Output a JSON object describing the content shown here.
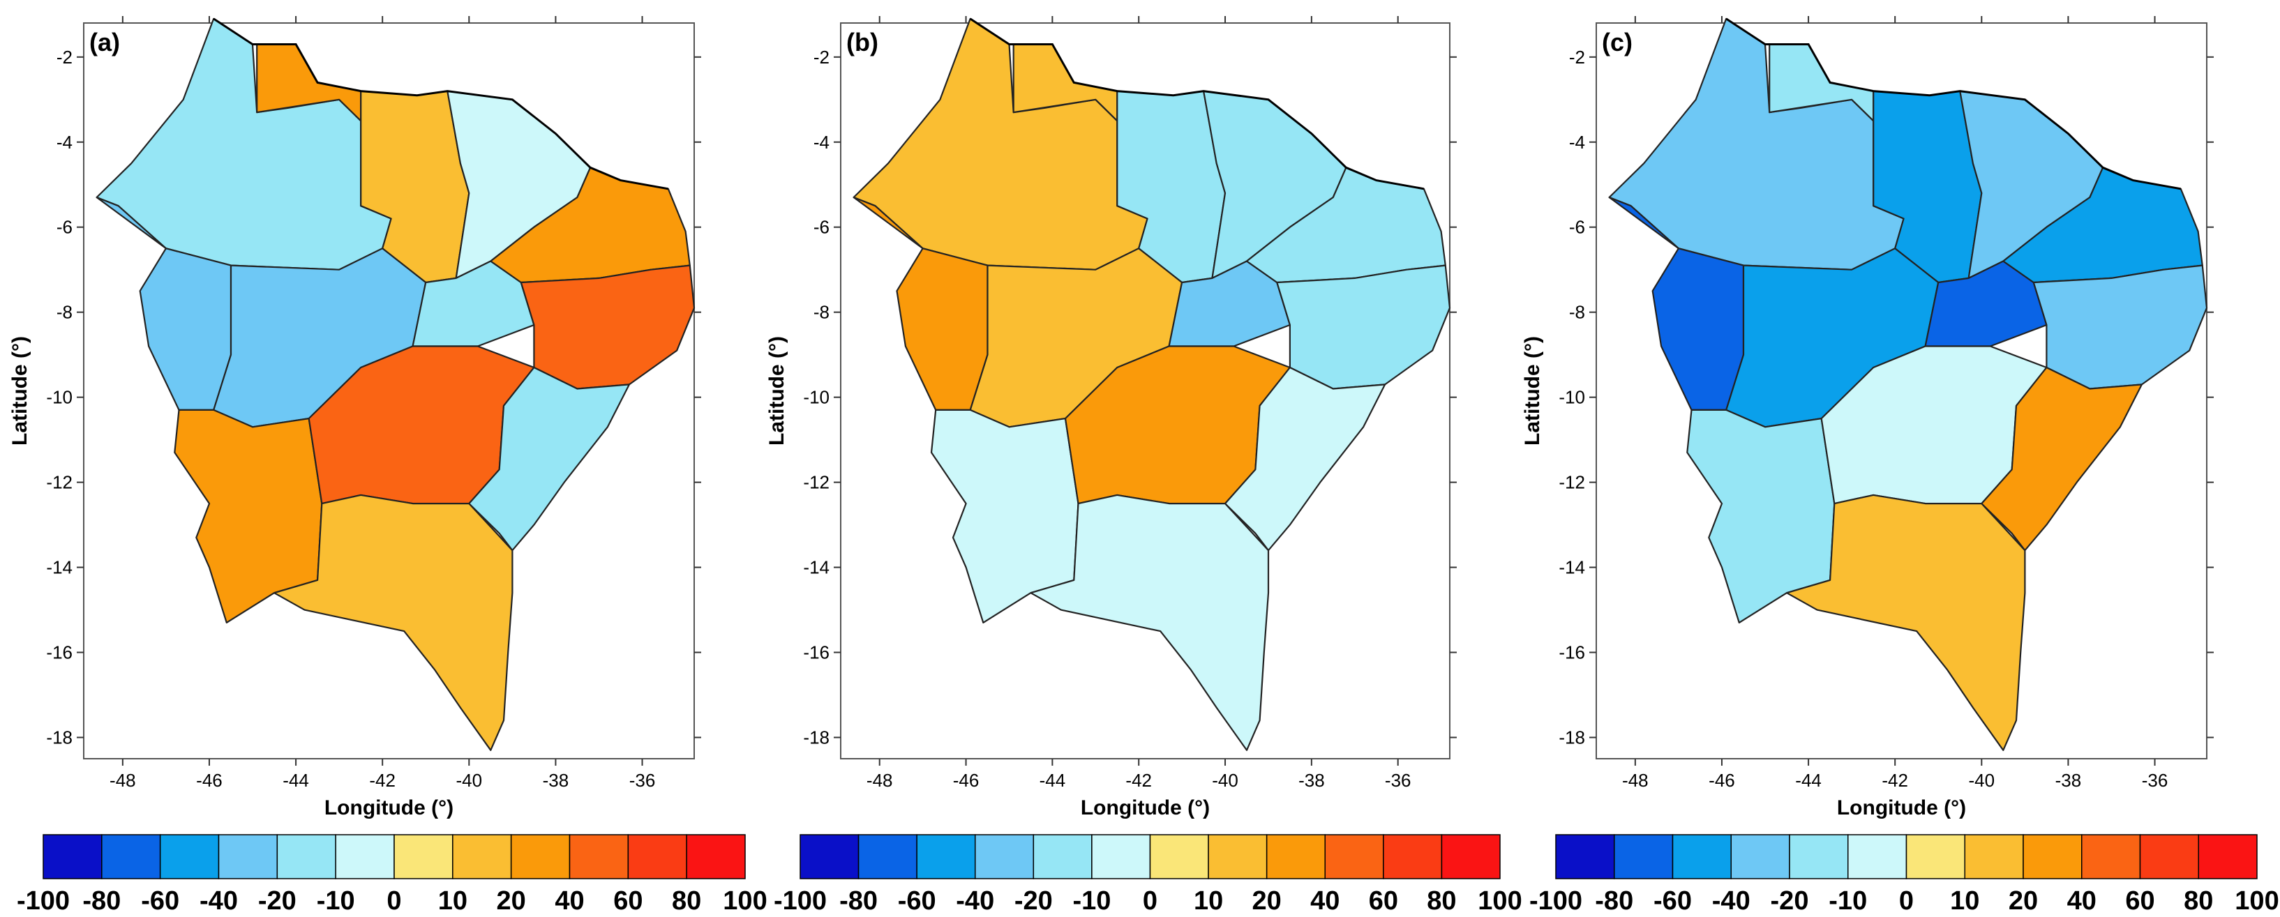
{
  "figure": {
    "x_label": "Longitude (°)",
    "y_label": "Latitude (°)",
    "x_ticks": [
      "-48",
      "-46",
      "-44",
      "-42",
      "-40",
      "-38",
      "-36"
    ],
    "y_ticks": [
      "-2",
      "-4",
      "-6",
      "-8",
      "-10",
      "-12",
      "-14",
      "-16",
      "-18"
    ],
    "x_tick_values": [
      -48,
      -46,
      -44,
      -42,
      -40,
      -38,
      -36
    ],
    "y_tick_values": [
      -2,
      -4,
      -6,
      -8,
      -10,
      -12,
      -14,
      -16,
      -18
    ],
    "x_range": [
      -48.9,
      -34.8
    ],
    "y_range": [
      -18.5,
      -1.2
    ],
    "colorbar_labels": [
      "-100",
      "-80",
      "-60",
      "-40",
      "-20",
      "-10",
      "0",
      "10",
      "20",
      "40",
      "60",
      "80",
      "100"
    ],
    "colorbar_colors": [
      "#0a10c8",
      "#0a64e6",
      "#0aa0eb",
      "#6ec8f5",
      "#96e6f5",
      "#cdf8fa",
      "#fae678",
      "#fabe32",
      "#fa9a0a",
      "#fa6414",
      "#fa3c14",
      "#fa1414"
    ]
  },
  "panels": [
    {
      "label": "(a)",
      "regions": [
        {
          "name": "north-west",
          "value": -20
        },
        {
          "name": "north-centre",
          "value": 20
        },
        {
          "name": "north-east-left",
          "value": 10
        },
        {
          "name": "north-east-right",
          "value": -10
        },
        {
          "name": "west",
          "value": -40
        },
        {
          "name": "central-west",
          "value": -40
        },
        {
          "name": "central-east",
          "value": -20
        },
        {
          "name": "east-north",
          "value": 20
        },
        {
          "name": "east-south",
          "value": 40
        },
        {
          "name": "south-west",
          "value": 20
        },
        {
          "name": "south-centre",
          "value": 40
        },
        {
          "name": "south-east",
          "value": -20
        },
        {
          "name": "far-south",
          "value": 10
        }
      ]
    },
    {
      "label": "(b)",
      "regions": [
        {
          "name": "north-west",
          "value": 10
        },
        {
          "name": "north-centre",
          "value": 10
        },
        {
          "name": "north-east-left",
          "value": -20
        },
        {
          "name": "north-east-right",
          "value": -20
        },
        {
          "name": "west",
          "value": 20
        },
        {
          "name": "central-west",
          "value": 10
        },
        {
          "name": "central-east",
          "value": -40
        },
        {
          "name": "east-north",
          "value": -20
        },
        {
          "name": "east-south",
          "value": -20
        },
        {
          "name": "south-west",
          "value": -10
        },
        {
          "name": "south-centre",
          "value": 20
        },
        {
          "name": "south-east",
          "value": -10
        },
        {
          "name": "far-south",
          "value": -10
        }
      ]
    },
    {
      "label": "(c)",
      "regions": [
        {
          "name": "north-west",
          "value": -40
        },
        {
          "name": "north-centre",
          "value": -20
        },
        {
          "name": "north-east-left",
          "value": -60
        },
        {
          "name": "north-east-right",
          "value": -40
        },
        {
          "name": "west",
          "value": -80
        },
        {
          "name": "central-west",
          "value": -60
        },
        {
          "name": "central-east",
          "value": -80
        },
        {
          "name": "east-north",
          "value": -60
        },
        {
          "name": "east-south",
          "value": -40
        },
        {
          "name": "south-west",
          "value": -20
        },
        {
          "name": "south-centre",
          "value": -10
        },
        {
          "name": "south-east",
          "value": 20
        },
        {
          "name": "far-south",
          "value": 10
        }
      ]
    }
  ]
}
